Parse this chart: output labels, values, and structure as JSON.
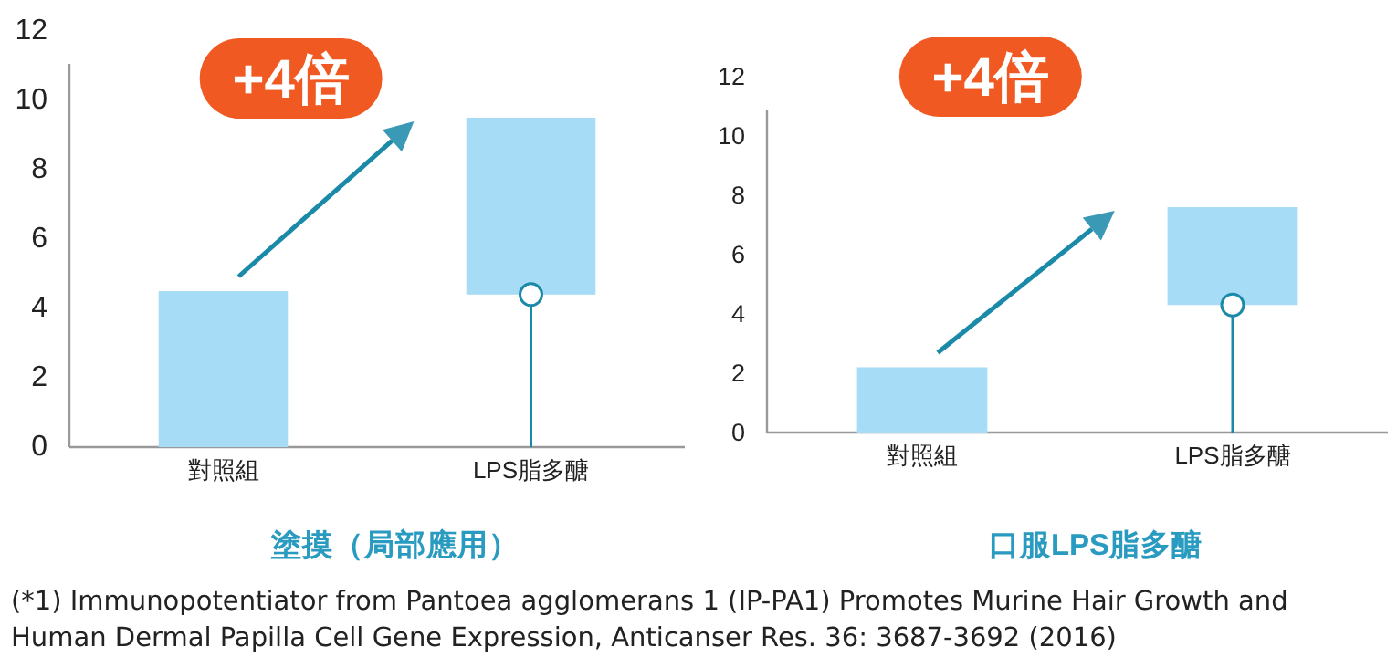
{
  "chart_data": [
    {
      "type": "bar",
      "title": "塗摸（局部應用）",
      "categories": [
        "對照組",
        "LPS脂多醣"
      ],
      "ylim": [
        0,
        12
      ],
      "yticks": [
        0,
        2,
        4,
        6,
        8,
        10,
        12
      ],
      "series": [
        {
          "type": "bar",
          "color": "#a6dcf5",
          "base": [
            0,
            4.4
          ],
          "values": [
            4.5,
            5.1
          ]
        },
        {
          "type": "lollipop",
          "color": "#1a8aa8",
          "values": [
            null,
            4.4
          ]
        }
      ],
      "annotations": [
        "+4倍",
        "(*1) Immunopotentiator from Pantoea agglomerans 1 (IP-PA1) Promotes Murine Hair Growth and Human Dermal Papilla Cell Gene Expression, Anticanser Res. 36: 3687-3692 (2016)"
      ]
    },
    {
      "type": "bar",
      "title": "口服LPS脂多醣",
      "categories": [
        "對照組",
        "LPS脂多醣"
      ],
      "ylim": [
        0,
        12
      ],
      "yticks": [
        0,
        2,
        4,
        6,
        8,
        10,
        12
      ],
      "series": [
        {
          "type": "bar",
          "color": "#a6dcf5",
          "base": [
            0,
            4.3
          ],
          "values": [
            2.2,
            3.3
          ]
        },
        {
          "type": "lollipop",
          "color": "#1a8aa8",
          "values": [
            null,
            4.3
          ]
        }
      ],
      "annotations": [
        "+4倍"
      ]
    }
  ]
}
